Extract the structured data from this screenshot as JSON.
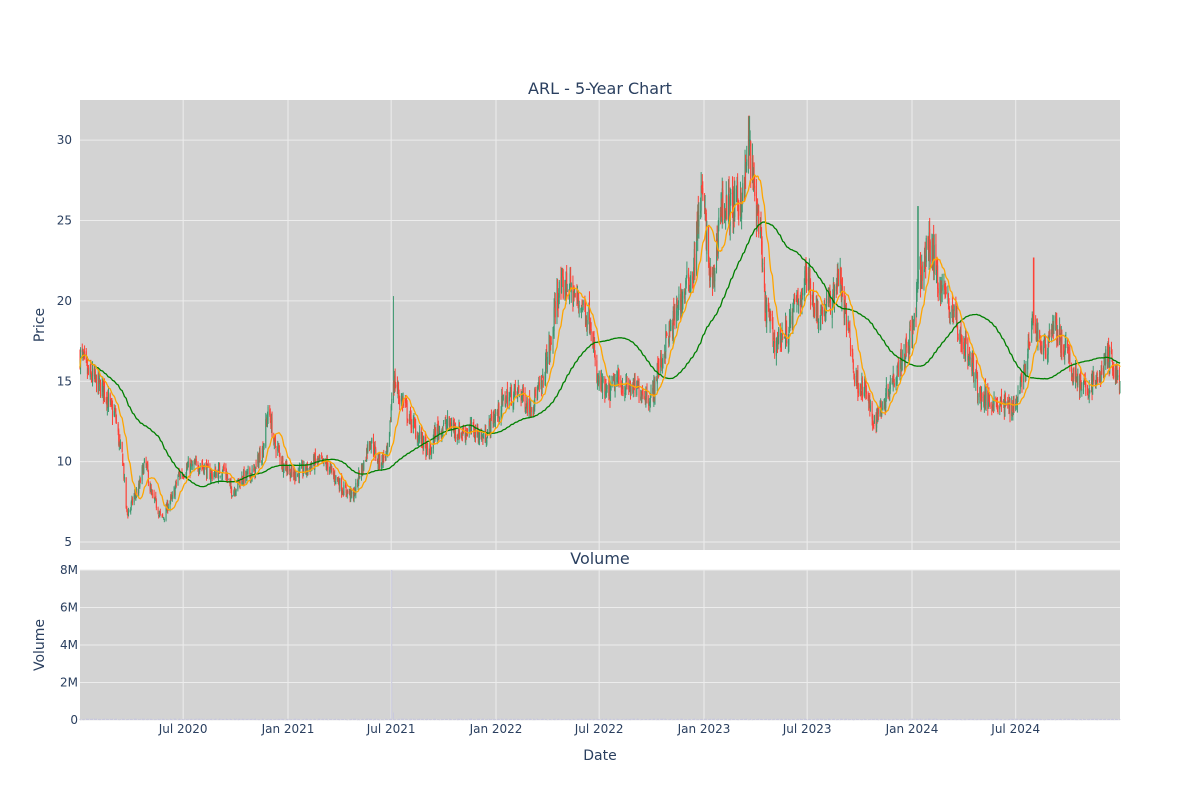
{
  "chart_data": [
    {
      "type": "candlestick",
      "title": "ARL - 5-Year Chart",
      "ylabel": "Price",
      "ylim": [
        4.5,
        32.5
      ],
      "y_ticks": [
        5,
        10,
        15,
        20,
        25,
        30
      ],
      "grid": true,
      "legend": "none",
      "colors": {
        "plot_bg": "#d3d3d3",
        "grid": "#ececec",
        "increasing": "#3d9970",
        "decreasing": "#ff4136",
        "ma_short": "#ffa500",
        "ma_long": "#008000"
      },
      "x_range": [
        "2020-01-02",
        "2024-12-31"
      ],
      "close_anchors": [
        [
          "2020-01-02",
          16.6
        ],
        [
          "2020-01-20",
          15.3
        ],
        [
          "2020-02-10",
          14.6
        ],
        [
          "2020-03-02",
          13.0
        ],
        [
          "2020-03-15",
          10.5
        ],
        [
          "2020-03-25",
          6.8
        ],
        [
          "2020-04-10",
          8.0
        ],
        [
          "2020-04-25",
          9.8
        ],
        [
          "2020-05-10",
          7.6
        ],
        [
          "2020-05-25",
          6.5
        ],
        [
          "2020-06-10",
          7.6
        ],
        [
          "2020-06-25",
          9.2
        ],
        [
          "2020-07-10",
          9.6
        ],
        [
          "2020-08-01",
          9.8
        ],
        [
          "2020-08-20",
          9.2
        ],
        [
          "2020-09-10",
          9.5
        ],
        [
          "2020-09-25",
          8.2
        ],
        [
          "2020-10-15",
          9.0
        ],
        [
          "2020-11-01",
          9.3
        ],
        [
          "2020-11-15",
          10.5
        ],
        [
          "2020-11-28",
          13.0
        ],
        [
          "2020-12-10",
          11.0
        ],
        [
          "2020-12-25",
          9.8
        ],
        [
          "2021-01-10",
          9.2
        ],
        [
          "2021-02-01",
          9.5
        ],
        [
          "2021-02-20",
          10.0
        ],
        [
          "2021-03-10",
          9.8
        ],
        [
          "2021-03-25",
          9.0
        ],
        [
          "2021-04-10",
          8.2
        ],
        [
          "2021-04-25",
          7.9
        ],
        [
          "2021-05-10",
          9.5
        ],
        [
          "2021-05-25",
          11.3
        ],
        [
          "2021-06-10",
          10.0
        ],
        [
          "2021-06-25",
          10.5
        ],
        [
          "2021-07-05",
          15.0
        ],
        [
          "2021-07-20",
          13.8
        ],
        [
          "2021-08-05",
          12.5
        ],
        [
          "2021-08-20",
          11.5
        ],
        [
          "2021-09-05",
          10.5
        ],
        [
          "2021-09-20",
          12.0
        ],
        [
          "2021-10-10",
          12.3
        ],
        [
          "2021-10-30",
          11.8
        ],
        [
          "2021-11-20",
          12.0
        ],
        [
          "2021-12-10",
          11.5
        ],
        [
          "2021-12-30",
          12.8
        ],
        [
          "2022-01-20",
          14.0
        ],
        [
          "2022-02-10",
          14.3
        ],
        [
          "2022-03-01",
          13.5
        ],
        [
          "2022-03-20",
          14.5
        ],
        [
          "2022-04-05",
          17.0
        ],
        [
          "2022-04-20",
          20.5
        ],
        [
          "2022-05-05",
          21.0
        ],
        [
          "2022-05-25",
          20.0
        ],
        [
          "2022-06-15",
          19.0
        ],
        [
          "2022-06-28",
          15.0
        ],
        [
          "2022-07-15",
          14.2
        ],
        [
          "2022-08-01",
          15.0
        ],
        [
          "2022-08-20",
          14.6
        ],
        [
          "2022-09-10",
          14.5
        ],
        [
          "2022-09-30",
          14.0
        ],
        [
          "2022-10-15",
          16.0
        ],
        [
          "2022-11-01",
          18.0
        ],
        [
          "2022-11-20",
          20.0
        ],
        [
          "2022-12-10",
          21.5
        ],
        [
          "2022-12-28",
          26.5
        ],
        [
          "2023-01-15",
          21.0
        ],
        [
          "2023-02-01",
          26.0
        ],
        [
          "2023-02-20",
          25.8
        ],
        [
          "2023-03-10",
          26.5
        ],
        [
          "2023-03-20",
          29.5
        ],
        [
          "2023-04-05",
          25.5
        ],
        [
          "2023-04-20",
          19.5
        ],
        [
          "2023-05-05",
          17.5
        ],
        [
          "2023-05-25",
          18.0
        ],
        [
          "2023-06-15",
          20.0
        ],
        [
          "2023-07-01",
          21.5
        ],
        [
          "2023-07-20",
          19.2
        ],
        [
          "2023-08-10",
          19.8
        ],
        [
          "2023-08-25",
          21.5
        ],
        [
          "2023-09-10",
          18.5
        ],
        [
          "2023-09-25",
          15.0
        ],
        [
          "2023-10-10",
          14.5
        ],
        [
          "2023-10-25",
          12.5
        ],
        [
          "2023-11-10",
          13.5
        ],
        [
          "2023-11-25",
          15.0
        ],
        [
          "2023-12-15",
          16.5
        ],
        [
          "2024-01-01",
          18.0
        ],
        [
          "2024-01-15",
          21.5
        ],
        [
          "2024-02-01",
          23.5
        ],
        [
          "2024-02-20",
          21.0
        ],
        [
          "2024-03-10",
          19.5
        ],
        [
          "2024-03-30",
          17.5
        ],
        [
          "2024-04-15",
          16.0
        ],
        [
          "2024-05-01",
          14.0
        ],
        [
          "2024-05-20",
          13.8
        ],
        [
          "2024-06-10",
          13.5
        ],
        [
          "2024-06-28",
          13.5
        ],
        [
          "2024-07-15",
          15.5
        ],
        [
          "2024-08-01",
          18.5
        ],
        [
          "2024-08-20",
          17.0
        ],
        [
          "2024-09-05",
          18.5
        ],
        [
          "2024-09-25",
          17.0
        ],
        [
          "2024-10-10",
          15.5
        ],
        [
          "2024-10-30",
          14.5
        ],
        [
          "2024-11-20",
          15.0
        ],
        [
          "2024-12-10",
          16.5
        ],
        [
          "2024-12-31",
          15.0
        ]
      ],
      "spikes": [
        [
          "2021-07-04",
          20.3
        ],
        [
          "2023-03-21",
          31.5
        ],
        [
          "2024-01-12",
          25.9
        ],
        [
          "2024-08-02",
          22.7
        ]
      ]
    },
    {
      "type": "bar",
      "title": "Volume",
      "xlabel": "Date",
      "ylabel": "Volume",
      "ylim": [
        0,
        8000000
      ],
      "y_ticks": [
        0,
        2000000,
        4000000,
        6000000,
        8000000
      ],
      "y_tick_labels": [
        "0",
        "2M",
        "4M",
        "6M",
        "8M"
      ],
      "x_ticks": [
        "2020-07-01",
        "2021-01-01",
        "2021-07-01",
        "2022-01-01",
        "2022-07-01",
        "2023-01-01",
        "2023-07-01",
        "2024-01-01",
        "2024-07-01"
      ],
      "x_tick_labels": [
        "Jul 2020",
        "Jan 2021",
        "Jul 2021",
        "Jan 2022",
        "Jul 2022",
        "Jan 2023",
        "Jul 2023",
        "Jan 2024",
        "Jul 2024"
      ],
      "grid": true,
      "colors": {
        "plot_bg": "#d3d3d3",
        "bar": "#c8c8dc",
        "grid": "#ececec"
      },
      "typical_volume": 50000,
      "spikes": [
        [
          "2021-07-02",
          8000000
        ],
        [
          "2021-07-05",
          400000
        ]
      ]
    }
  ]
}
